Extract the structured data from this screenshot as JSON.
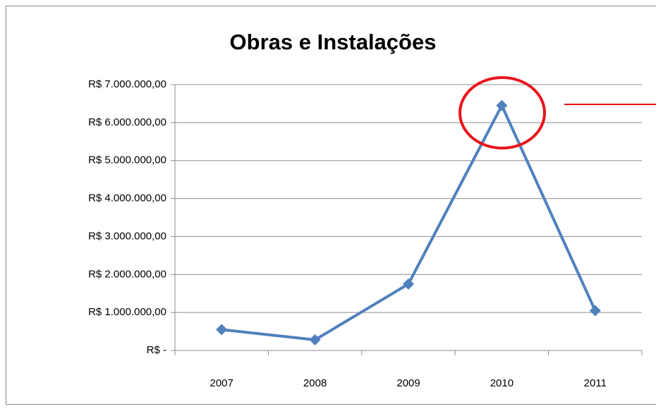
{
  "chart_data": {
    "type": "line",
    "title": "Obras e Instalações",
    "categories": [
      "2007",
      "2008",
      "2009",
      "2010",
      "2011"
    ],
    "series": [
      {
        "name": "Obras e Instalações",
        "color": "#4f81bd",
        "values": [
          550000,
          280000,
          1750000,
          6450000,
          1050000
        ]
      }
    ],
    "ylim": [
      0,
      7000000
    ],
    "yticks": [
      {
        "value": 0,
        "label": "R$ -"
      },
      {
        "value": 1000000,
        "label": "R$ 1.000.000,00"
      },
      {
        "value": 2000000,
        "label": "R$ 2.000.000,00"
      },
      {
        "value": 3000000,
        "label": "R$ 3.000.000,00"
      },
      {
        "value": 4000000,
        "label": "R$ 4.000.000,00"
      },
      {
        "value": 5000000,
        "label": "R$ 5.000.000,00"
      },
      {
        "value": 6000000,
        "label": "R$ 6.000.000,00"
      },
      {
        "value": 7000000,
        "label": "R$ 7.000.000,00"
      }
    ],
    "grid": true
  }
}
